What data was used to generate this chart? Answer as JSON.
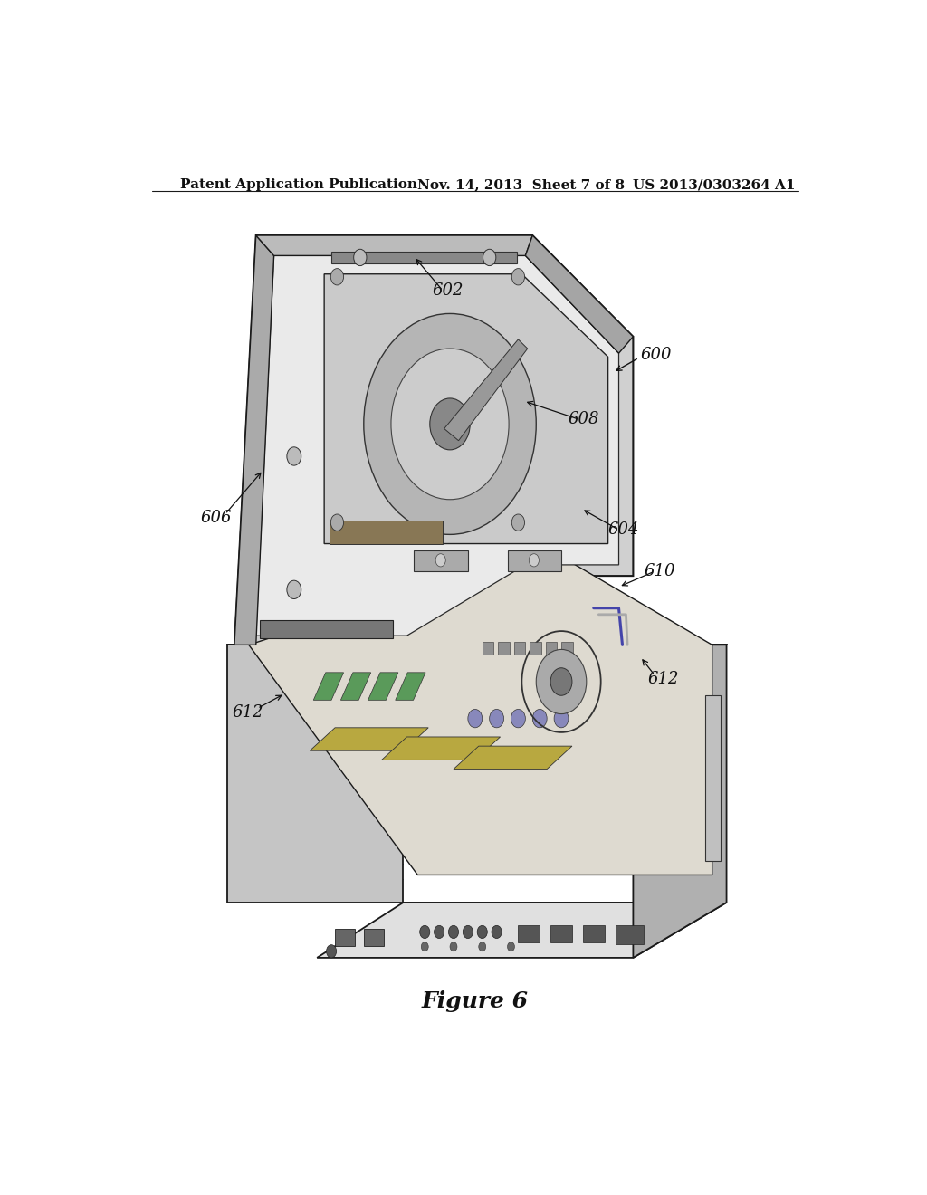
{
  "background_color": "#ffffff",
  "header_left": "Patent Application Publication",
  "header_mid": "Nov. 14, 2013  Sheet 7 of 8",
  "header_right": "US 2013/0303264 A1",
  "figure_label": "Figure 6",
  "header_fontsize": 11,
  "label_fontsize": 13,
  "figure_label_fontsize": 18
}
